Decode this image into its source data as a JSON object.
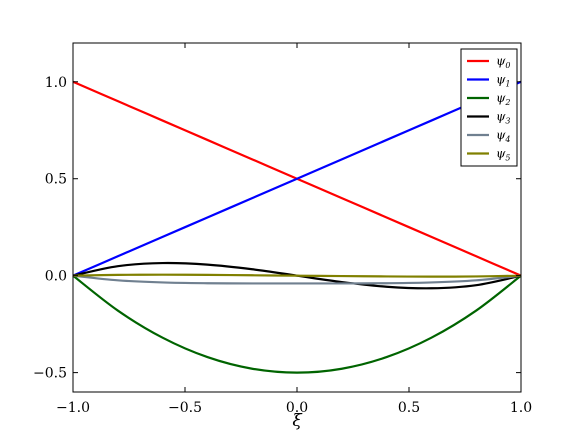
{
  "chart_data": {
    "type": "line",
    "title": "",
    "xlabel": "ξ",
    "ylabel": "",
    "xlim": [
      -1.0,
      1.0
    ],
    "ylim": [
      -0.6,
      1.2
    ],
    "xticks": [
      -1.0,
      -0.5,
      0.0,
      0.5,
      1.0
    ],
    "xtick_labels": [
      "−1.0",
      "−0.5",
      "0.0",
      "0.5",
      "1.0"
    ],
    "yticks": [
      -0.5,
      0.0,
      0.5,
      1.0
    ],
    "ytick_labels": [
      "−0.5",
      "0.0",
      "0.5",
      "1.0"
    ],
    "grid": false,
    "legend_position": "top-right",
    "series": [
      {
        "name": "ψ0",
        "label_base": "ψ",
        "label_sub": "0",
        "color": "#ff0000",
        "x": [
          -1.0,
          -0.8,
          -0.6,
          -0.4,
          -0.2,
          0.0,
          0.2,
          0.4,
          0.6,
          0.8,
          1.0
        ],
        "y": [
          1.0,
          0.9,
          0.8,
          0.7,
          0.6,
          0.5,
          0.4,
          0.3,
          0.2,
          0.1,
          0.0
        ]
      },
      {
        "name": "ψ1",
        "label_base": "ψ",
        "label_sub": "1",
        "color": "#0000ff",
        "x": [
          -1.0,
          -0.8,
          -0.6,
          -0.4,
          -0.2,
          0.0,
          0.2,
          0.4,
          0.6,
          0.8,
          1.0
        ],
        "y": [
          0.0,
          0.1,
          0.2,
          0.3,
          0.4,
          0.5,
          0.6,
          0.7,
          0.8,
          0.9,
          1.0
        ]
      },
      {
        "name": "ψ2",
        "label_base": "ψ",
        "label_sub": "2",
        "color": "#006400",
        "x": [
          -1.0,
          -0.8,
          -0.6,
          -0.4,
          -0.2,
          0.0,
          0.2,
          0.4,
          0.6,
          0.8,
          1.0
        ],
        "y": [
          0.0,
          -0.18,
          -0.32,
          -0.42,
          -0.48,
          -0.5,
          -0.48,
          -0.42,
          -0.32,
          -0.18,
          0.0
        ]
      },
      {
        "name": "ψ3",
        "label_base": "ψ",
        "label_sub": "3",
        "color": "#000000",
        "x": [
          -1.0,
          -0.8,
          -0.6,
          -0.4,
          -0.2,
          0.0,
          0.2,
          0.4,
          0.6,
          0.8,
          1.0
        ],
        "y": [
          0.0,
          0.049,
          0.065,
          0.057,
          0.033,
          0.0,
          -0.033,
          -0.057,
          -0.065,
          -0.049,
          0.0
        ]
      },
      {
        "name": "ψ4",
        "label_base": "ψ",
        "label_sub": "4",
        "color": "#708090",
        "x": [
          -1.0,
          -0.8,
          -0.6,
          -0.4,
          -0.2,
          0.0,
          0.2,
          0.4,
          0.6,
          0.8,
          1.0
        ],
        "y": [
          0.0,
          -0.024,
          -0.035,
          -0.039,
          -0.04,
          -0.04,
          -0.04,
          -0.039,
          -0.035,
          -0.024,
          0.0
        ]
      },
      {
        "name": "ψ5",
        "label_base": "ψ",
        "label_sub": "5",
        "color": "#808000",
        "x": [
          -1.0,
          -0.8,
          -0.6,
          -0.4,
          -0.2,
          0.0,
          0.2,
          0.4,
          0.6,
          0.8,
          1.0
        ],
        "y": [
          0.0,
          0.004,
          0.005,
          0.004,
          0.002,
          0.0,
          -0.002,
          -0.004,
          -0.005,
          -0.004,
          0.0
        ]
      }
    ]
  }
}
